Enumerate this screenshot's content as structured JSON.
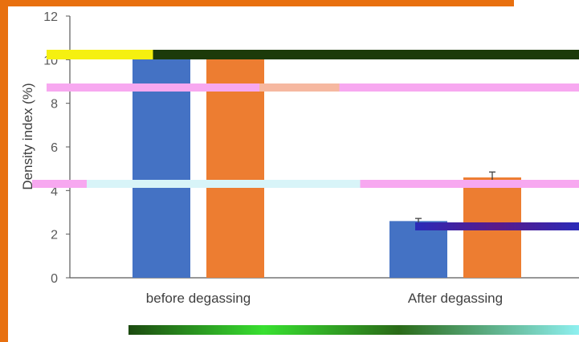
{
  "chart_data": {
    "type": "bar",
    "title": "",
    "ylabel": "Density index (%)",
    "xlabel": "",
    "ylim": [
      0,
      12
    ],
    "yticks": [
      0,
      2,
      4,
      6,
      8,
      10,
      12
    ],
    "categories": [
      "before degassing",
      "After degassing"
    ],
    "series": [
      {
        "values": [
          10.2,
          2.6
        ],
        "errors": [
          0.15,
          0.12
        ],
        "color": "#4472C4"
      },
      {
        "values": [
          10.2,
          4.6
        ],
        "errors": [
          0.15,
          0.25
        ],
        "color": "#ED7D31"
      }
    ],
    "grid": false,
    "legend": "none"
  },
  "colors": {
    "frame": "#E8700F",
    "axis": "#595959"
  }
}
